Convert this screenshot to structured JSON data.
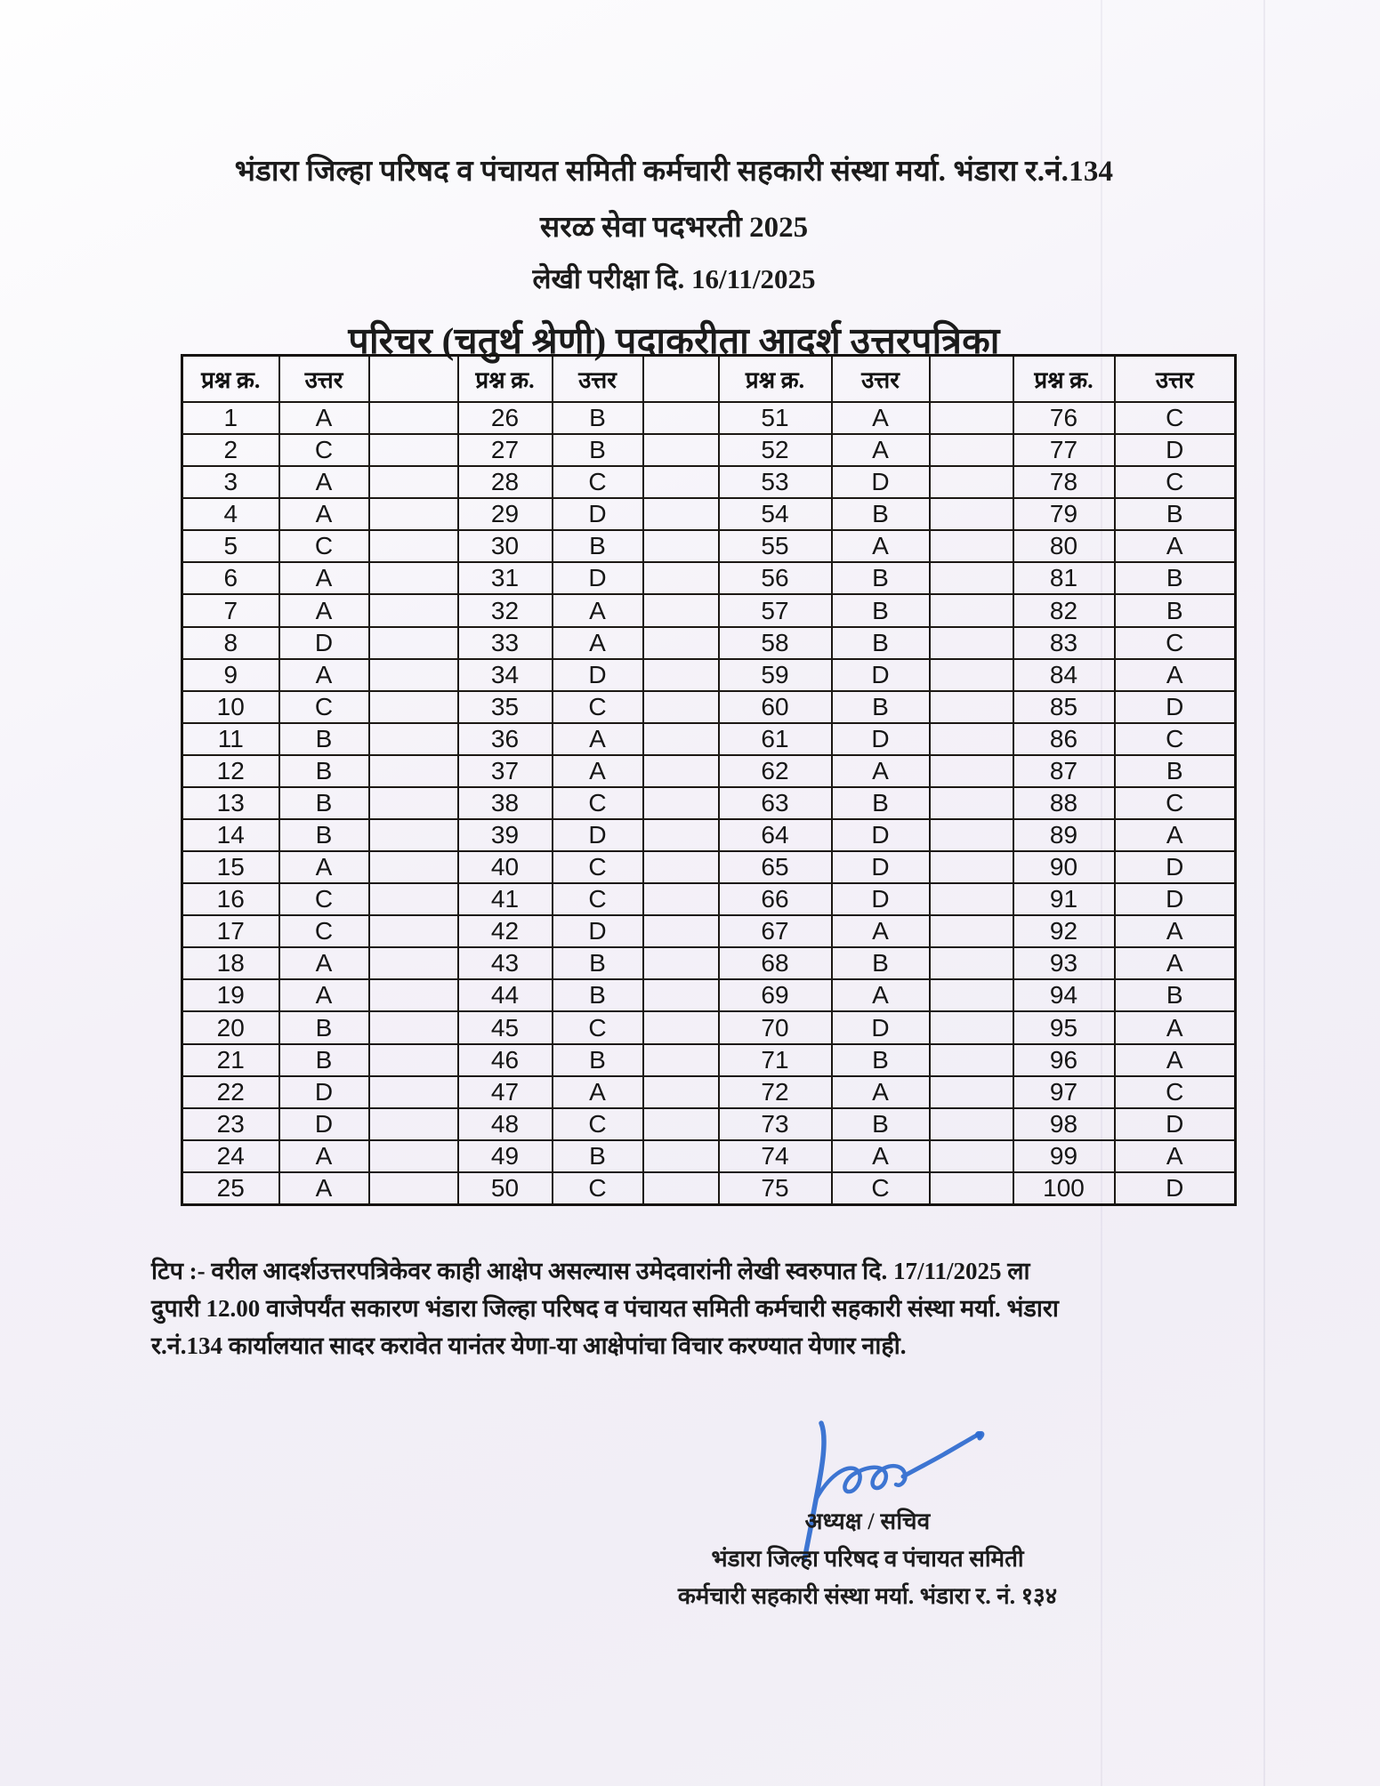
{
  "page": {
    "title_line1": "भंडारा जिल्हा परिषद व पंचायत समिती कर्मचारी सहकारी संस्था मर्या. भंडारा र.नं.134",
    "title_line2": "सरळ सेवा पदभरती 2025",
    "title_line3": "लेखी परीक्षा दि. 16/11/2025",
    "title_line4": "परिचर (चतुर्थ श्रेणी)  पदाकरीता आदर्श उत्तरपत्रिका"
  },
  "answer_table": {
    "col_headers": {
      "question": "प्रश्न क्र.",
      "answer": "उत्तर"
    },
    "rows_per_group": 25,
    "groups": [
      {
        "start": 1,
        "answers": [
          "A",
          "C",
          "A",
          "A",
          "C",
          "A",
          "A",
          "D",
          "A",
          "C",
          "B",
          "B",
          "B",
          "B",
          "A",
          "C",
          "C",
          "A",
          "A",
          "B",
          "B",
          "D",
          "D",
          "A",
          "A"
        ]
      },
      {
        "start": 26,
        "answers": [
          "B",
          "B",
          "C",
          "D",
          "B",
          "D",
          "A",
          "A",
          "D",
          "C",
          "A",
          "A",
          "C",
          "D",
          "C",
          "C",
          "D",
          "B",
          "B",
          "C",
          "B",
          "A",
          "C",
          "B",
          "C"
        ]
      },
      {
        "start": 51,
        "answers": [
          "A",
          "A",
          "D",
          "B",
          "A",
          "B",
          "B",
          "B",
          "D",
          "B",
          "D",
          "A",
          "B",
          "D",
          "D",
          "D",
          "A",
          "B",
          "A",
          "D",
          "B",
          "A",
          "B",
          "A",
          "C"
        ]
      },
      {
        "start": 76,
        "answers": [
          "C",
          "D",
          "C",
          "B",
          "A",
          "B",
          "B",
          "C",
          "A",
          "D",
          "C",
          "B",
          "C",
          "A",
          "D",
          "D",
          "A",
          "A",
          "B",
          "A",
          "A",
          "C",
          "D",
          "A",
          "D"
        ]
      }
    ]
  },
  "note": {
    "line1": "टिप :- वरील आदर्शउत्तरपत्रिकेवर काही आक्षेप असल्यास उमेदवारांनी लेखी स्वरुपात दि. 17/11/2025 ला",
    "line2": "दुपारी 12.00 वाजेपर्यंत सकारण भंडारा जिल्हा परिषद व पंचायत समिती कर्मचारी सहकारी संस्था मर्या. भंडारा",
    "line3": "र.नं.134 कार्यालयात सादर करावेत यानंतर येणा-या आक्षेपांचा विचार करण्यात येणार नाही."
  },
  "signature": {
    "label": "handwritten-signature",
    "ink_color": "#2e6bd0"
  },
  "footer": {
    "line1": "अध्यक्ष / सचिव",
    "line2": "भंडारा जिल्हा परिषद व पंचायत समिती",
    "line3": "कर्मचारी सहकारी संस्था मर्या. भंडारा र. नं. १३४"
  }
}
